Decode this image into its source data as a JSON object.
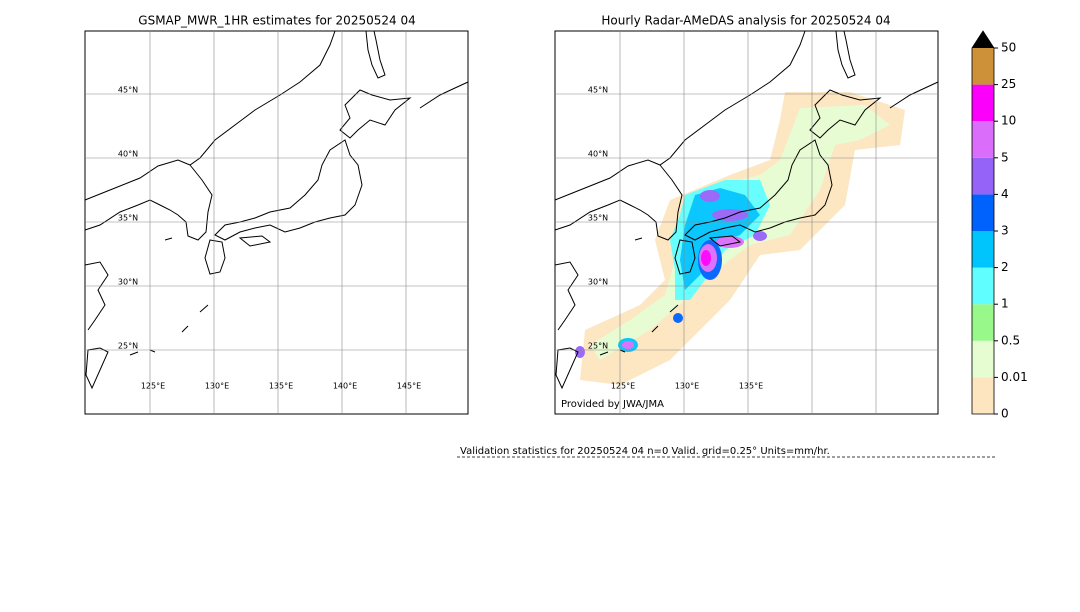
{
  "left_panel": {
    "title": "GSMAP_MWR_1HR estimates for 20250524 04",
    "lat_labels": [
      "45°N",
      "40°N",
      "35°N",
      "30°N",
      "25°N"
    ],
    "lon_labels": [
      "125°E",
      "130°E",
      "135°E",
      "140°E",
      "145°E"
    ]
  },
  "right_panel": {
    "title": "Hourly Radar-AMeDAS analysis for 20250524 04",
    "lat_labels": [
      "45°N",
      "40°N",
      "35°N",
      "30°N",
      "25°N"
    ],
    "lon_labels": [
      "125°E",
      "130°E",
      "135°E"
    ],
    "credit": "Provided by JWA/JMA"
  },
  "colorbar": {
    "ticks": [
      0,
      0.01,
      0.5,
      1,
      2,
      3,
      4,
      5,
      10,
      25,
      50
    ],
    "colors": [
      "#fde5bf",
      "#e6fcd1",
      "#98f98a",
      "#60fefe",
      "#00c5fd",
      "#0062fd",
      "#9663f8",
      "#db6dfb",
      "#fb00fb",
      "#cd9239"
    ],
    "over_color": "#000000"
  },
  "validation": {
    "text": "Validation statistics for 20250524 04  n=0 Valid. grid=0.25° Units=mm/hr."
  }
}
